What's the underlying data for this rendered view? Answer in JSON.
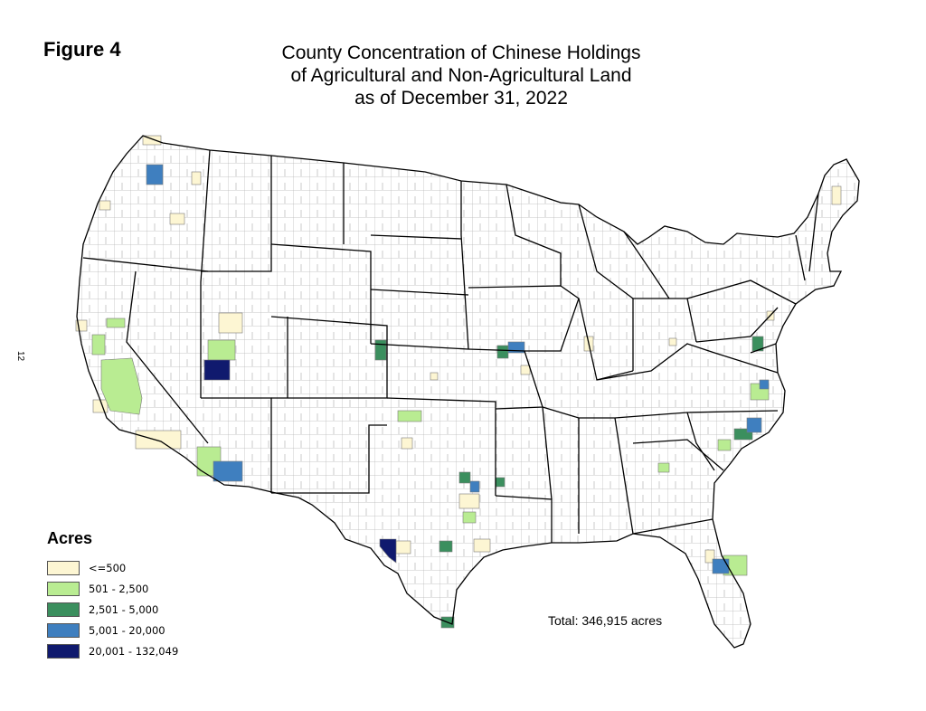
{
  "figure_label": "Figure 4",
  "title_lines": [
    "County Concentration of Chinese Holdings",
    "of Agricultural and Non-Agricultural Land",
    "as of December 31, 2022"
  ],
  "page_number": "12",
  "legend": {
    "title": "Acres",
    "classes": [
      {
        "label": "<=500",
        "color": "#fdf6d3"
      },
      {
        "label": "501 - 2,500",
        "color": "#b9ec92"
      },
      {
        "label": "2,501 - 5,000",
        "color": "#3b8f5e"
      },
      {
        "label": "5,001 - 20,000",
        "color": "#3f7fbf"
      },
      {
        "label": "20,001 - 132,049",
        "color": "#101a6e"
      }
    ]
  },
  "total": "Total: 346,915 acres",
  "colors": {
    "land": "#ffffff",
    "county_border": "#b5b5b5",
    "state_border": "#000000"
  }
}
